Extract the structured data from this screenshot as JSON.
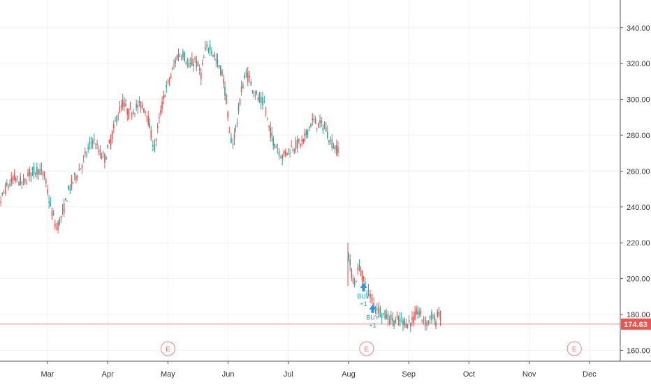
{
  "chart_data": {
    "type": "candlestick",
    "title": "",
    "xlabel": "",
    "ylabel": "",
    "ylim": [
      150,
      350
    ],
    "y_ticks": [
      "340.00",
      "320.00",
      "300.00",
      "280.00",
      "260.00",
      "240.00",
      "220.00",
      "200.00",
      "180.00",
      "160.00"
    ],
    "y_tick_values": [
      340,
      320,
      300,
      280,
      260,
      240,
      220,
      200,
      180,
      160
    ],
    "x_ticks": [
      "Mar",
      "Apr",
      "May",
      "Jun",
      "Jul",
      "Aug",
      "Sep",
      "Oct",
      "Nov",
      "Dec"
    ],
    "grid": true,
    "last_price": 174.63,
    "last_price_label": "174.63",
    "earnings_markers": [
      {
        "label": "E",
        "month_index": 2.0
      },
      {
        "label": "E",
        "month_index": 5.3
      },
      {
        "label": "E",
        "month_index": 8.75
      }
    ],
    "signals": [
      {
        "text": "BUY",
        "qty": "+1",
        "month_index": 5.25,
        "price": 196
      },
      {
        "text": "BUY",
        "qty": "+1",
        "month_index": 5.4,
        "price": 184
      }
    ],
    "anchors": [
      [
        -1.0,
        245
      ],
      [
        -0.85,
        237
      ],
      [
        -0.7,
        250
      ],
      [
        -0.55,
        256
      ],
      [
        -0.4,
        253
      ],
      [
        -0.3,
        259
      ],
      [
        -0.15,
        261
      ],
      [
        -0.05,
        257
      ],
      [
        0.05,
        240
      ],
      [
        0.15,
        228
      ],
      [
        0.25,
        236
      ],
      [
        0.35,
        249
      ],
      [
        0.45,
        256
      ],
      [
        0.55,
        262
      ],
      [
        0.65,
        270
      ],
      [
        0.75,
        278
      ],
      [
        0.85,
        271
      ],
      [
        0.95,
        267
      ],
      [
        1.05,
        277
      ],
      [
        1.15,
        290
      ],
      [
        1.25,
        298
      ],
      [
        1.35,
        292
      ],
      [
        1.45,
        295
      ],
      [
        1.55,
        297
      ],
      [
        1.65,
        293
      ],
      [
        1.72,
        280
      ],
      [
        1.78,
        273
      ],
      [
        1.88,
        293
      ],
      [
        1.95,
        304
      ],
      [
        2.05,
        313
      ],
      [
        2.15,
        324
      ],
      [
        2.25,
        326
      ],
      [
        2.35,
        318
      ],
      [
        2.45,
        322
      ],
      [
        2.55,
        314
      ],
      [
        2.62,
        327
      ],
      [
        2.7,
        330
      ],
      [
        2.8,
        322
      ],
      [
        2.9,
        315
      ],
      [
        2.97,
        300
      ],
      [
        3.02,
        280
      ],
      [
        3.08,
        276
      ],
      [
        3.15,
        288
      ],
      [
        3.22,
        305
      ],
      [
        3.3,
        315
      ],
      [
        3.38,
        309
      ],
      [
        3.45,
        304
      ],
      [
        3.52,
        299
      ],
      [
        3.6,
        298
      ],
      [
        3.68,
        284
      ],
      [
        3.75,
        277
      ],
      [
        3.82,
        273
      ],
      [
        3.9,
        268
      ],
      [
        3.98,
        271
      ],
      [
        4.05,
        273
      ],
      [
        4.15,
        275
      ],
      [
        4.25,
        276
      ],
      [
        4.32,
        283
      ],
      [
        4.4,
        288
      ],
      [
        4.5,
        286
      ],
      [
        4.6,
        285
      ],
      [
        4.7,
        277
      ],
      [
        4.8,
        272
      ],
      [
        4.85,
        274
      ],
      [
        4.87,
        null
      ],
      [
        5.0,
        213
      ],
      [
        5.05,
        203
      ],
      [
        5.1,
        197
      ],
      [
        5.18,
        207
      ],
      [
        5.25,
        199
      ],
      [
        5.33,
        192
      ],
      [
        5.42,
        186
      ],
      [
        5.5,
        183
      ],
      [
        5.58,
        180
      ],
      [
        5.68,
        178
      ],
      [
        5.78,
        176
      ],
      [
        5.88,
        177
      ],
      [
        5.98,
        175
      ],
      [
        6.08,
        177
      ],
      [
        6.15,
        182
      ],
      [
        6.22,
        178
      ],
      [
        6.3,
        175
      ],
      [
        6.38,
        179
      ],
      [
        6.45,
        176
      ],
      [
        6.5,
        182
      ],
      [
        6.55,
        175
      ]
    ]
  }
}
